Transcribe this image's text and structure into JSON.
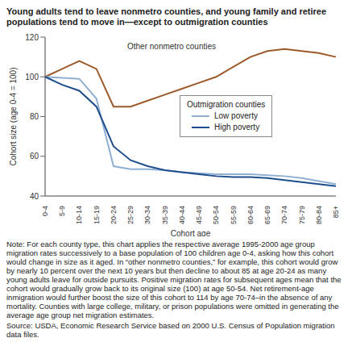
{
  "chart_data": {
    "type": "line",
    "title": "Young adults tend to leave nonmetro counties, and young family and retiree populations tend to move in—except to outmigration counties",
    "x_label": "Cohort age",
    "y_label": "Cohort size (age 0-4 = 100)",
    "categories": [
      "0-4",
      "5-9",
      "10-14",
      "15-19",
      "20-24",
      "25-29",
      "30-34",
      "35-39",
      "40-44",
      "45-49",
      "50-54",
      "55-59",
      "60-64",
      "65-69",
      "70-74",
      "75-79",
      "80-84",
      "85+"
    ],
    "series": [
      {
        "name": "Other nonmetro counties",
        "color": "#9c5a2a",
        "values": [
          100,
          104,
          108,
          104,
          85,
          85,
          88,
          91,
          94,
          97,
          100,
          105,
          110,
          113,
          114,
          113,
          112,
          110
        ]
      },
      {
        "name": "Low poverty",
        "color": "#8fb0d3",
        "values": [
          100,
          99.5,
          99,
          89,
          55,
          53.5,
          53.5,
          53,
          52,
          51.5,
          51,
          51,
          51,
          50.5,
          50,
          49,
          47.5,
          46
        ]
      },
      {
        "name": "High poverty",
        "color": "#1f4e8c",
        "values": [
          100,
          96,
          93,
          85,
          65,
          58,
          55,
          53,
          52,
          51,
          50,
          49.5,
          49.5,
          49,
          48,
          47,
          46,
          45
        ]
      }
    ],
    "annotations": [
      "Other nonmetro counties"
    ],
    "legend_title": "Outmigration counties",
    "legend": "right",
    "ylim": [
      40,
      120
    ],
    "yticks": [
      40,
      60,
      80,
      100,
      120
    ],
    "grid": false,
    "note": "Note: For each county type, this chart applies the respective average 1995-2000 age group migration rates successively to a base population of 100 children age 0-4, asking how this cohort would change in size as it aged. In “other nonmetro counties,” for example, this cohort would grow by nearly 10 percent over the next 10 years but then decline to about 85 at age 20-24 as many young adults leave for outside pursuits. Positive migration rates for subsequent ages mean that the cohort would gradually grow back to its original size (100) at age 50-54. Net retirement-age inmigration would further boost the size of this cohort to 114 by age 70-74–in the absence of any mortality. Counties with large college, military, or prison populations were omitted in generating the average age group net migration estimates.",
    "source": "Source: USDA, Economic Research Service based on 2000 U.S. Census of Population migration data files."
  }
}
